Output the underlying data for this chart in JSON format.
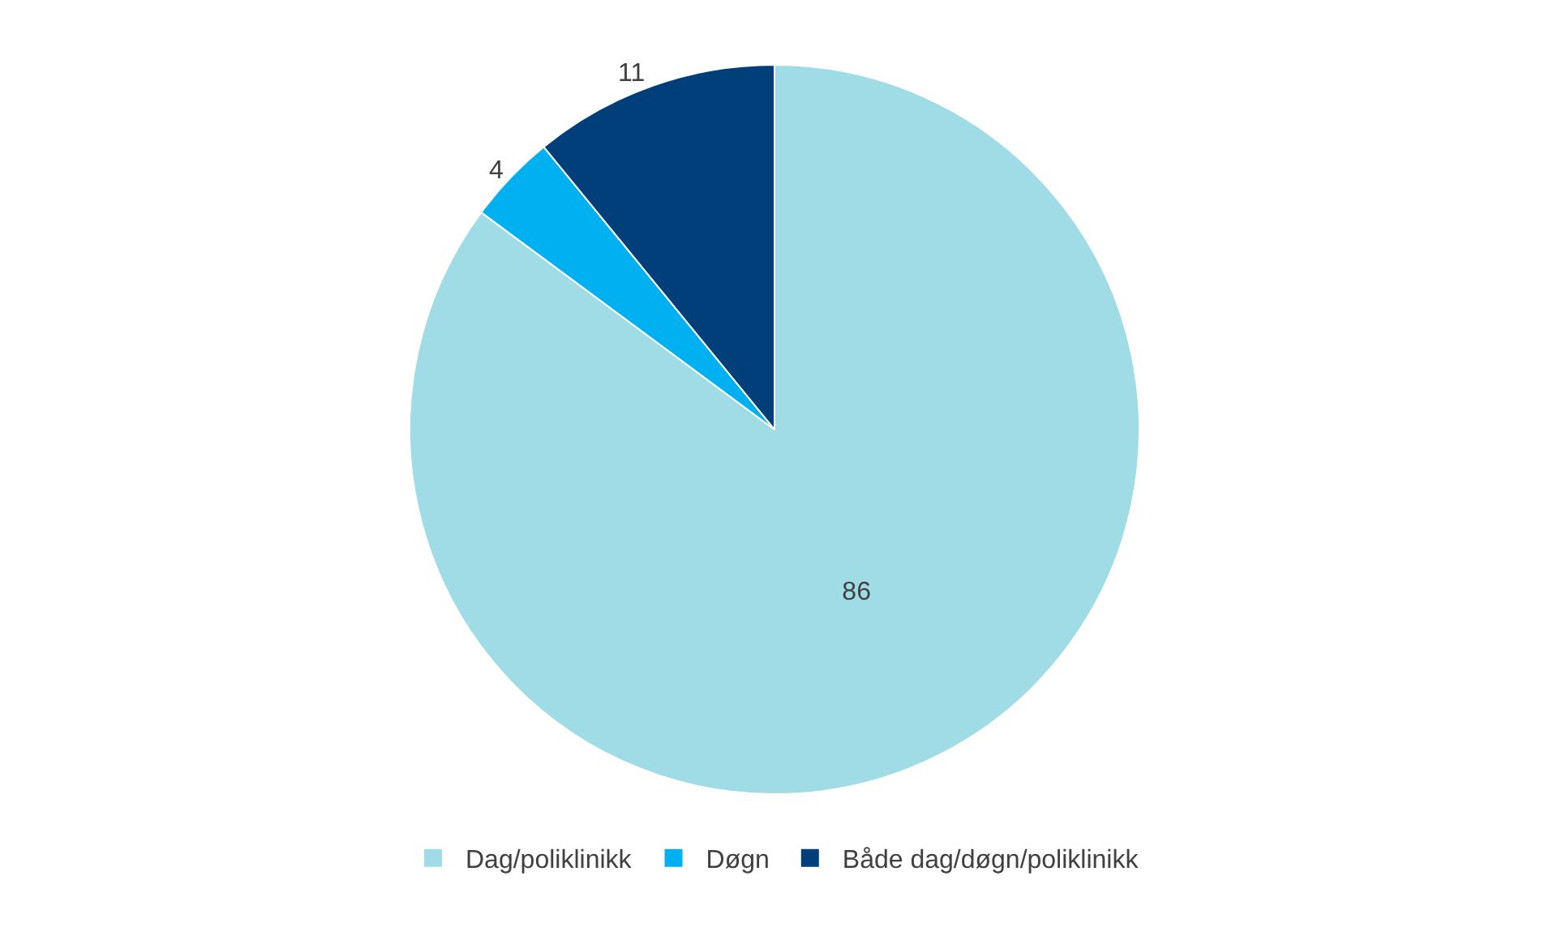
{
  "chart_data": {
    "type": "pie",
    "categories": [
      "Dag/poliklinikk",
      "Døgn",
      "Både dag/døgn/poliklinikk"
    ],
    "values": [
      86,
      4,
      11
    ],
    "colors": [
      "#a0dce6",
      "#00b0f0",
      "#003f7a"
    ],
    "data_labels": true,
    "legend": "bottom"
  }
}
